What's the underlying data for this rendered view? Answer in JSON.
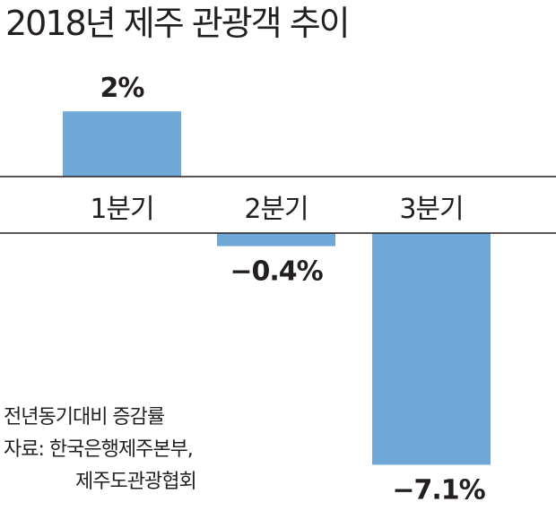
{
  "title": "2018년 제주 관광객 추이",
  "notes": {
    "line1": "전년동기대비 증감률",
    "line2": "자료: 한국은행제주본부,",
    "line3": "제주도관광협회"
  },
  "colors": {
    "bar": "#6fa8d6",
    "axis": "#231f20",
    "text": "#231f20"
  },
  "chart_data": {
    "type": "bar",
    "title": "2018년 제주 관광객 추이",
    "categories": [
      "1분기",
      "2분기",
      "3분기"
    ],
    "values": [
      2,
      -0.4,
      -7.1
    ],
    "value_labels": [
      "2%",
      "−0.4%",
      "−7.1%"
    ],
    "xlabel": "",
    "ylabel": "",
    "grid": false,
    "legend": "none"
  }
}
